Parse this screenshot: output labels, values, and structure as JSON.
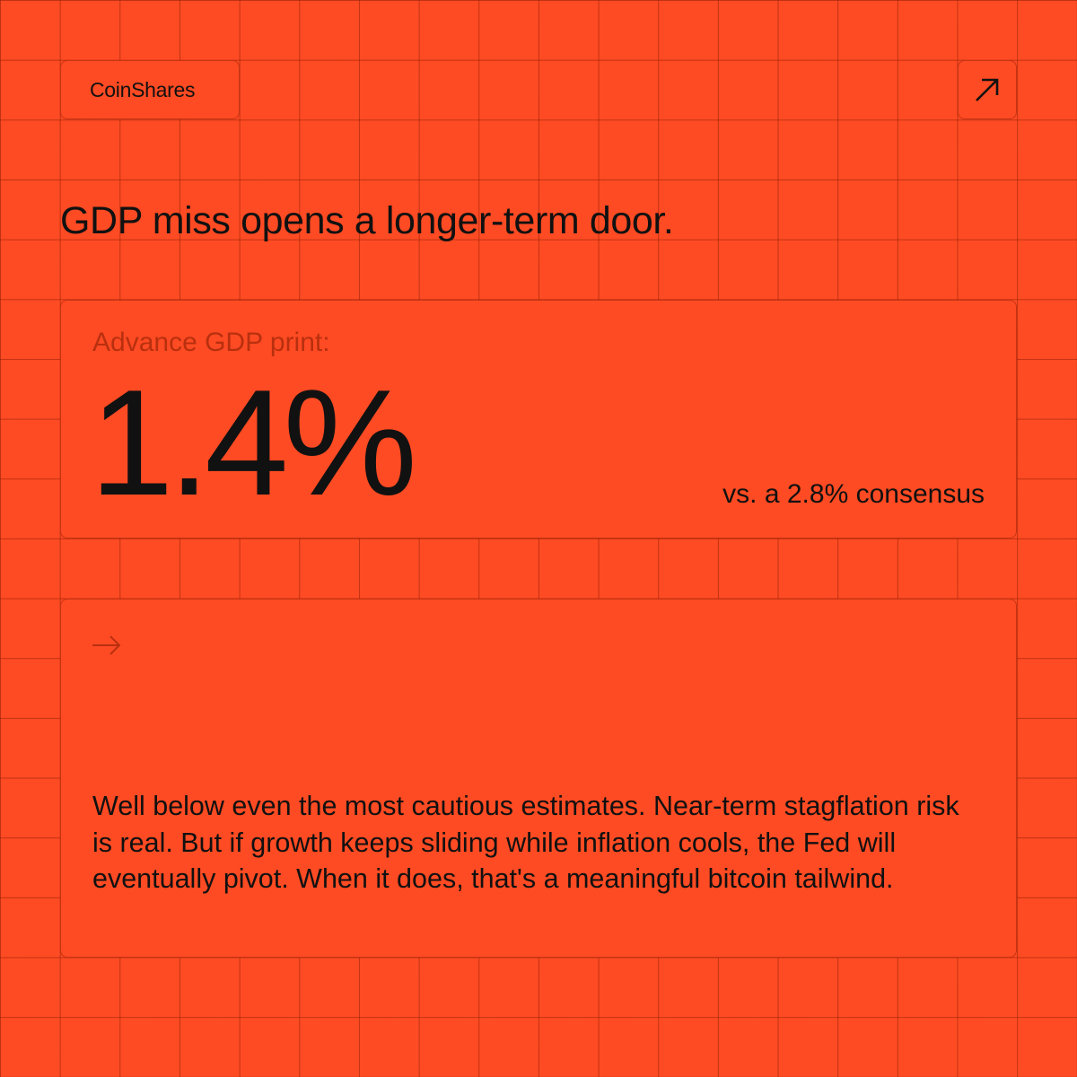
{
  "brand": {
    "logo_text": "CoinShares"
  },
  "icons": {
    "external_link": "arrow-up-right-icon",
    "bullet": "arrow-right-icon"
  },
  "colors": {
    "background": "#FF4B23",
    "text": "#111111",
    "muted_text": "#B8300F",
    "grid_lines": "#8C1E05"
  },
  "headline": "GDP miss opens a longer-term door.",
  "stat": {
    "label": "Advance GDP print:",
    "value": "1.4%",
    "comparison": "vs. a 2.8% consensus"
  },
  "body": {
    "text": "Well below even the most cautious estimates. Near-term stagflation risk is real. But if growth keeps sliding while inflation cools, the Fed will eventually pivot. When it does, that's a meaningful bitcoin tailwind."
  }
}
